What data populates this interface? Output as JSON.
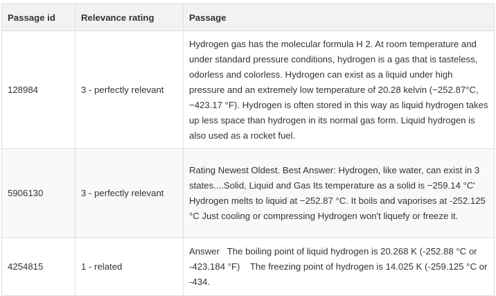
{
  "table": {
    "headers": {
      "passage_id": "Passage id",
      "relevance": "Relevance rating",
      "passage": "Passage"
    },
    "rows": [
      {
        "passage_id": "128984",
        "relevance": "3 - perfectly relevant",
        "passage": "Hydrogen gas has the molecular formula H 2. At room temperature and under standard pressure conditions, hydrogen is a gas that is tasteless, odorless and colorless. Hydrogen can exist as a liquid under high pressure and an extremely low temperature of 20.28 kelvin (−252.87°C, −423.17 °F). Hydrogen is often stored in this way as liquid hydrogen takes up less space than hydrogen in its normal gas form. Liquid hydrogen is also used as a rocket fuel."
      },
      {
        "passage_id": "5906130",
        "relevance": "3 - perfectly relevant",
        "passage": "Rating Newest Oldest. Best Answer: Hydrogen, like water, can exist in 3 states....Solid, Liquid and Gas Its temperature as a solid is −259.14 °C' Hydrogen melts to liquid at −252.87 °C. It boils and vaporises at -252.125 °C Just cooling or compressing Hydrogen won't liquefy or freeze it."
      },
      {
        "passage_id": "4254815",
        "relevance": "1 - related",
        "passage": "Answer   The boiling point of liquid hydrogen is 20.268 K (-252.88 °C or -423.184 °F)    The freezing point of hydrogen is 14.025 K (-259.125 °C or -434."
      }
    ]
  }
}
